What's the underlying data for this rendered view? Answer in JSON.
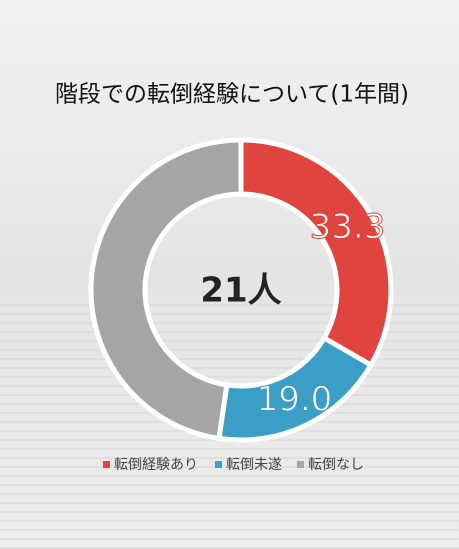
{
  "chart_data": {
    "type": "donut",
    "title": "階段での転倒経験について(1年間)",
    "center_label": "21人",
    "categories": [
      "転倒経験あり",
      "転倒未遂",
      "転倒なし"
    ],
    "values": [
      33.3,
      19.0,
      47.6
    ],
    "value_labels": [
      "33.3",
      "19.0",
      null
    ],
    "colors": [
      "#e0443e",
      "#3b9ec6",
      "#a5a5a5"
    ]
  }
}
